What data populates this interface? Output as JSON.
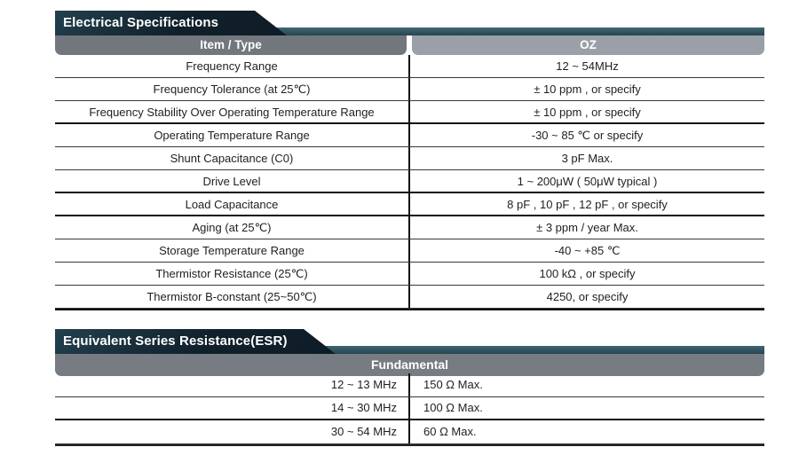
{
  "colors": {
    "banner_navy": "#10202b",
    "banner_teal": "#2f5360",
    "header_band_dark_gray": "#72777e",
    "header_band_light_gray": "#9aa0a7",
    "table_line": "#101010",
    "text": "#1f1f1f"
  },
  "electrical": {
    "title": "Electrical Specifications",
    "col_item": "Item / Type",
    "col_value": "OZ",
    "rows": [
      {
        "item": "Frequency Range",
        "value": "12 ~ 54MHz"
      },
      {
        "item": "Frequency Tolerance (at 25℃)",
        "value": "± 10 ppm , or specify"
      },
      {
        "item": "Frequency Stability Over Operating Temperature Range",
        "value": "± 10 ppm , or specify"
      },
      {
        "item": "Operating Temperature Range",
        "value": "-30 ~ 85 ℃ or specify"
      },
      {
        "item": "Shunt Capacitance (C0)",
        "value": "3 pF Max."
      },
      {
        "item": "Drive Level",
        "value": "1 ~ 200μW ( 50μW typical )"
      },
      {
        "item": "Load Capacitance",
        "value": "8 pF , 10 pF , 12 pF , or specify"
      },
      {
        "item": "Aging (at 25℃)",
        "value": "± 3 ppm / year Max."
      },
      {
        "item": "Storage Temperature Range",
        "value": "-40 ~ +85 ℃"
      },
      {
        "item": "Thermistor Resistance (25℃)",
        "value": "100 kΩ , or specify"
      },
      {
        "item": "Thermistor B-constant (25~50℃)",
        "value": "4250, or specify"
      }
    ]
  },
  "esr": {
    "title": "Equivalent Series Resistance(ESR)",
    "col_header": "Fundamental",
    "rows": [
      {
        "range": "12 ~ 13 MHz",
        "value": "150 Ω Max."
      },
      {
        "range": "14 ~ 30 MHz",
        "value": "100 Ω Max."
      },
      {
        "range": "30 ~ 54 MHz",
        "value": "60 Ω Max."
      }
    ]
  }
}
